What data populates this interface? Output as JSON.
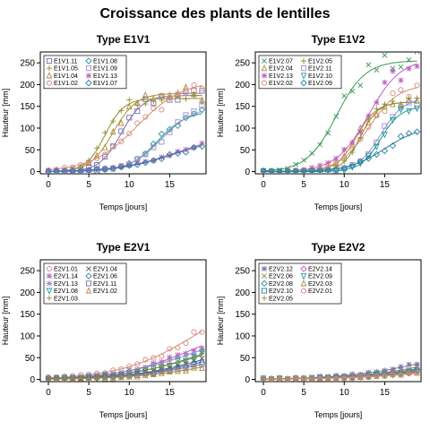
{
  "title": "Croissance des plants de lentilles",
  "chart_data": [
    {
      "type": "scatter",
      "title": "Type E1V1",
      "xlabel": "Temps [jours]",
      "ylabel": "Hauteur [mm]",
      "xlim": [
        -1,
        19.5
      ],
      "ylim": [
        -5,
        275
      ],
      "xticks": [
        0,
        5,
        10,
        15
      ],
      "yticks": [
        0,
        50,
        100,
        150,
        200,
        250
      ],
      "legend_position": "top-left",
      "legend_columns": 2,
      "series": [
        {
          "name": "E1V1.11",
          "color": "#7a6fb3",
          "marker": "square",
          "A": 175,
          "k": 0.75,
          "t0": 9.0
        },
        {
          "name": "E1V1.05",
          "color": "#8c8f2e",
          "marker": "plus",
          "A": 168,
          "k": 0.85,
          "t0": 7.0
        },
        {
          "name": "E1V1.04",
          "color": "#b08a3a",
          "marker": "triangle",
          "A": 180,
          "k": 0.7,
          "t0": 8.0
        },
        {
          "name": "E1V1.02",
          "color": "#d88a7a",
          "marker": "circle",
          "A": 210,
          "k": 0.35,
          "t0": 11.0
        },
        {
          "name": "E1V1.08",
          "color": "#1f9a9a",
          "marker": "diamond",
          "A": 140,
          "k": 0.55,
          "t0": 13.5
        },
        {
          "name": "E1V1.09",
          "color": "#9a8fc8",
          "marker": "square",
          "A": 150,
          "k": 0.5,
          "t0": 14.0
        },
        {
          "name": "E1V1.13",
          "color": "#c060c0",
          "marker": "asterisk",
          "A": 90,
          "k": 0.28,
          "t0": 16.0
        },
        {
          "name": "E1V1.07",
          "color": "#2a7fa0",
          "marker": "diamond",
          "A": 80,
          "k": 0.3,
          "t0": 15.5
        }
      ]
    },
    {
      "type": "scatter",
      "title": "Type E1V2",
      "xlabel": "Temps [jours]",
      "ylabel": "Hauteur [mm]",
      "xlim": [
        -1,
        19.5
      ],
      "ylim": [
        -5,
        275
      ],
      "xticks": [
        0,
        5,
        10,
        15
      ],
      "yticks": [
        0,
        50,
        100,
        150,
        200,
        250
      ],
      "legend_position": "top-left",
      "legend_columns": 2,
      "series": [
        {
          "name": "E1V2.07",
          "color": "#3a9a55",
          "marker": "cross",
          "A": 255,
          "k": 0.55,
          "t0": 9.0
        },
        {
          "name": "E1V2.04",
          "color": "#b08a3a",
          "marker": "triangle",
          "A": 160,
          "k": 0.8,
          "t0": 11.5
        },
        {
          "name": "E1V2.13",
          "color": "#c060c0",
          "marker": "asterisk",
          "A": 260,
          "k": 0.5,
          "t0": 13.0
        },
        {
          "name": "E1V2.02",
          "color": "#d88a7a",
          "marker": "circle",
          "A": 200,
          "k": 0.55,
          "t0": 13.0
        },
        {
          "name": "E1V2.05",
          "color": "#8c8f2e",
          "marker": "plus",
          "A": 160,
          "k": 0.9,
          "t0": 12.0
        },
        {
          "name": "E1V2.11",
          "color": "#9a8fc8",
          "marker": "square",
          "A": 170,
          "k": 0.7,
          "t0": 14.5
        },
        {
          "name": "E1V2.10",
          "color": "#1f9a9a",
          "marker": "triangle-down",
          "A": 150,
          "k": 0.8,
          "t0": 14.5
        },
        {
          "name": "E1V2.09",
          "color": "#2a7fa0",
          "marker": "diamond",
          "A": 105,
          "k": 0.45,
          "t0": 15.0
        }
      ]
    },
    {
      "type": "scatter",
      "title": "Type E2V1",
      "xlabel": "Temps [jours]",
      "ylabel": "Hauteur [mm]",
      "xlim": [
        -1,
        19.5
      ],
      "ylim": [
        -5,
        275
      ],
      "xticks": [
        0,
        5,
        10,
        15
      ],
      "yticks": [
        0,
        50,
        100,
        150,
        200,
        250
      ],
      "legend_position": "top-left",
      "legend_columns": 2,
      "series": [
        {
          "name": "E2V1.01",
          "color": "#d88a7a",
          "marker": "circle",
          "A": 200,
          "k": 0.22,
          "t0": 18.0
        },
        {
          "name": "E2V1.14",
          "color": "#c060c0",
          "marker": "asterisk",
          "A": 140,
          "k": 0.22,
          "t0": 18.0
        },
        {
          "name": "E2V1.13",
          "color": "#9a8fc8",
          "marker": "asterisk",
          "A": 130,
          "k": 0.2,
          "t0": 18.5
        },
        {
          "name": "E2V1.08",
          "color": "#1f9a9a",
          "marker": "triangle-down",
          "A": 110,
          "k": 0.22,
          "t0": 18.5
        },
        {
          "name": "E2V1.03",
          "color": "#8c8f2e",
          "marker": "plus",
          "A": 110,
          "k": 0.2,
          "t0": 19.0
        },
        {
          "name": "E2V1.04",
          "color": "#555555",
          "marker": "cross",
          "A": 90,
          "k": 0.22,
          "t0": 19.0
        },
        {
          "name": "E2V1.06",
          "color": "#2a7fa0",
          "marker": "diamond",
          "A": 80,
          "k": 0.22,
          "t0": 19.0
        },
        {
          "name": "E2V1.11",
          "color": "#7a6fb3",
          "marker": "square",
          "A": 70,
          "k": 0.22,
          "t0": 19.0
        },
        {
          "name": "E2V1.02",
          "color": "#b08a3a",
          "marker": "triangle",
          "A": 60,
          "k": 0.22,
          "t0": 19.5
        }
      ]
    },
    {
      "type": "scatter",
      "title": "Type E2V2",
      "xlabel": "Temps [jours]",
      "ylabel": "Hauteur [mm]",
      "xlim": [
        -1,
        19.5
      ],
      "ylim": [
        -5,
        275
      ],
      "xticks": [
        0,
        5,
        10,
        15
      ],
      "yticks": [
        0,
        50,
        100,
        150,
        200,
        250
      ],
      "legend_position": "top-left",
      "legend_columns": 2,
      "series": [
        {
          "name": "E2V2.12",
          "color": "#7a6fb3",
          "marker": "asterisk",
          "A": 90,
          "k": 0.2,
          "t0": 21.0
        },
        {
          "name": "E2V2.06",
          "color": "#8c8f2e",
          "marker": "cross",
          "A": 70,
          "k": 0.2,
          "t0": 21.0
        },
        {
          "name": "E2V2.08",
          "color": "#1f9a9a",
          "marker": "diamond",
          "A": 60,
          "k": 0.2,
          "t0": 21.0
        },
        {
          "name": "E2V2.10",
          "color": "#2a7fa0",
          "marker": "square",
          "A": 50,
          "k": 0.2,
          "t0": 21.0
        },
        {
          "name": "E2V2.05",
          "color": "#8c8f2e",
          "marker": "plus",
          "A": 45,
          "k": 0.2,
          "t0": 21.0
        },
        {
          "name": "E2V2.14",
          "color": "#c060c0",
          "marker": "diamond",
          "A": 55,
          "k": 0.2,
          "t0": 21.0
        },
        {
          "name": "E2V2.09",
          "color": "#1f9a9a",
          "marker": "triangle-down",
          "A": 45,
          "k": 0.2,
          "t0": 21.0
        },
        {
          "name": "E2V2.03",
          "color": "#b08a3a",
          "marker": "triangle",
          "A": 40,
          "k": 0.2,
          "t0": 21.0
        },
        {
          "name": "E2V2.01",
          "color": "#d88a7a",
          "marker": "circle",
          "A": 35,
          "k": 0.2,
          "t0": 21.0
        }
      ]
    }
  ]
}
